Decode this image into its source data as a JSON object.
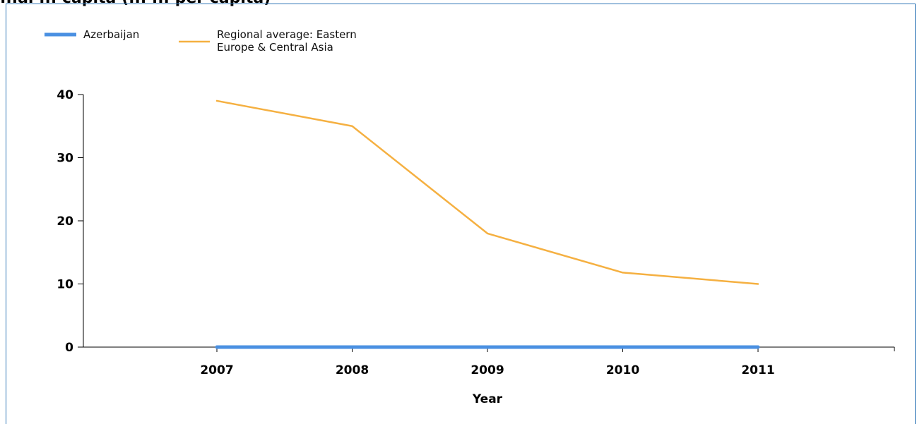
{
  "header": {
    "title": "...al ... capita (... ... per capita)"
  },
  "chart_data": {
    "type": "line",
    "x": [
      2007,
      2008,
      2009,
      2010,
      2011
    ],
    "xlabel": "Year",
    "ylabel": "",
    "ylim": [
      0,
      40
    ],
    "yticks": [
      0,
      10,
      20,
      30,
      40
    ],
    "grid": false,
    "legend": "top-left",
    "series": [
      {
        "name": "Azerbaijan",
        "color": "#4a90e2",
        "values": [
          0,
          0,
          0,
          0,
          0
        ]
      },
      {
        "name": "Regional average: Eastern Europe & Central Asia",
        "name_lines": [
          "Regional average: Eastern",
          "Europe & Central Asia"
        ],
        "color": "#f5b041",
        "values": [
          39,
          35,
          18,
          11.8,
          10
        ]
      }
    ]
  }
}
